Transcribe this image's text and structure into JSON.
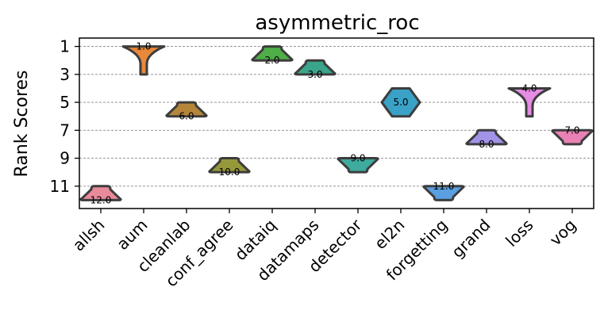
{
  "chart_data": {
    "type": "violin",
    "title": "asymmetric_roc",
    "ylabel": "Rank Scores",
    "xlabel": "",
    "ylim": [
      12.6,
      0.4
    ],
    "yticks": [
      1,
      3,
      5,
      7,
      9,
      11
    ],
    "grid": true,
    "categories": [
      "allsh",
      "aum",
      "cleanlab",
      "conf_agree",
      "dataiq",
      "datamaps",
      "detector",
      "el2n",
      "forgetting",
      "grand",
      "loss",
      "vog"
    ],
    "colors": [
      "#e88a9a",
      "#e8883a",
      "#b5863a",
      "#96993a",
      "#4fae47",
      "#3aa58a",
      "#3eab9e",
      "#3aa2c6",
      "#5a9fe0",
      "#a292e8",
      "#e68ce4",
      "#ea81b4"
    ],
    "series": [
      {
        "category": "allsh",
        "values": [
          12
        ],
        "range": [
          11,
          12
        ],
        "label": "12.0"
      },
      {
        "category": "aum",
        "values": [
          1
        ],
        "range": [
          1,
          3
        ],
        "label": "1.0"
      },
      {
        "category": "cleanlab",
        "values": [
          6
        ],
        "range": [
          5,
          6
        ],
        "label": "6.0"
      },
      {
        "category": "conf_agree",
        "values": [
          10
        ],
        "range": [
          9,
          10
        ],
        "label": "10.0"
      },
      {
        "category": "dataiq",
        "values": [
          2
        ],
        "range": [
          1,
          2
        ],
        "label": "2.0"
      },
      {
        "category": "datamaps",
        "values": [
          3
        ],
        "range": [
          2,
          3
        ],
        "label": "3.0"
      },
      {
        "category": "detector",
        "values": [
          9
        ],
        "range": [
          9,
          10
        ],
        "label": "9.0"
      },
      {
        "category": "el2n",
        "values": [
          5
        ],
        "range": [
          4,
          6
        ],
        "label": "5.0"
      },
      {
        "category": "forgetting",
        "values": [
          11
        ],
        "range": [
          11,
          12
        ],
        "label": "11.0"
      },
      {
        "category": "grand",
        "values": [
          8
        ],
        "range": [
          7,
          8
        ],
        "label": "8.0"
      },
      {
        "category": "loss",
        "values": [
          4
        ],
        "range": [
          4,
          6
        ],
        "label": "4.0"
      },
      {
        "category": "vog",
        "values": [
          7
        ],
        "range": [
          7,
          8
        ],
        "label": "7.0"
      }
    ]
  }
}
